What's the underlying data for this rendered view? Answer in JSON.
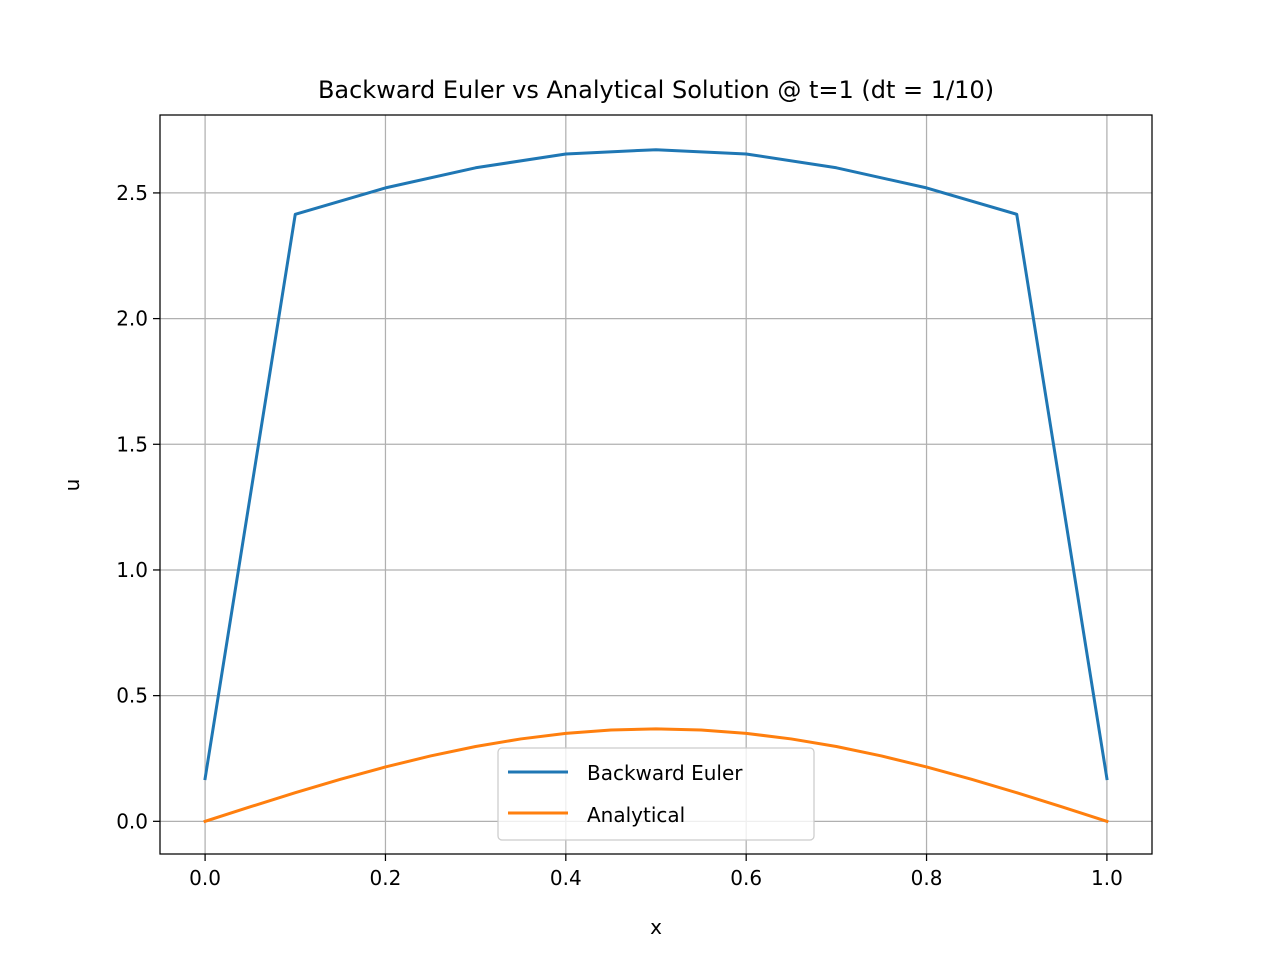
{
  "chart_data": {
    "type": "line",
    "title": "Backward Euler vs Analytical Solution @ t=1 (dt = 1/10)",
    "xlabel": "x",
    "ylabel": "u",
    "xlim": [
      -0.05,
      1.05
    ],
    "ylim": [
      -0.13,
      2.81
    ],
    "xticks": [
      "0.0",
      "0.2",
      "0.4",
      "0.6",
      "0.8",
      "1.0"
    ],
    "yticks": [
      "0.0",
      "0.5",
      "1.0",
      "1.5",
      "2.0",
      "2.5"
    ],
    "grid": true,
    "legend_position": "lower center",
    "series": [
      {
        "name": "Backward Euler",
        "color": "#1f77b4",
        "x": [
          0.0,
          0.1,
          0.2,
          0.3,
          0.4,
          0.5,
          0.6,
          0.7,
          0.8,
          0.9,
          1.0
        ],
        "y": [
          0.17,
          2.415,
          2.52,
          2.6,
          2.655,
          2.672,
          2.655,
          2.6,
          2.52,
          2.415,
          0.17
        ]
      },
      {
        "name": "Analytical",
        "color": "#ff7f0e",
        "x": [
          0.0,
          0.05,
          0.1,
          0.15,
          0.2,
          0.25,
          0.3,
          0.35,
          0.4,
          0.45,
          0.5,
          0.55,
          0.6,
          0.65,
          0.7,
          0.75,
          0.8,
          0.85,
          0.9,
          0.95,
          1.0
        ],
        "y": [
          0.0,
          0.0576,
          0.1137,
          0.167,
          0.2162,
          0.2601,
          0.2976,
          0.3278,
          0.3499,
          0.3633,
          0.3679,
          0.3633,
          0.3499,
          0.3278,
          0.2976,
          0.2601,
          0.2162,
          0.167,
          0.1137,
          0.0576,
          0.0
        ]
      }
    ]
  }
}
